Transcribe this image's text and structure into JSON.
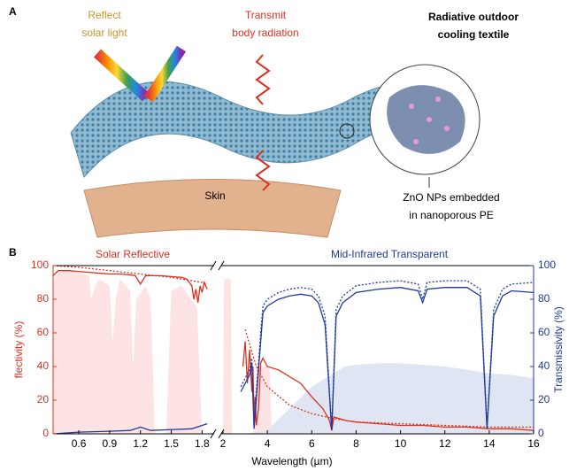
{
  "panel_a": {
    "label": "A",
    "reflect_label": [
      "Reflect",
      "solar light"
    ],
    "transmit_label": [
      "Transmit",
      "body radiation"
    ],
    "textile_label": [
      "Radiative outdoor",
      "cooling textile"
    ],
    "skin_label": "Skin",
    "zno_label": [
      "ZnO NPs embedded",
      "in nanoporous PE"
    ]
  },
  "chart_data": {
    "type": "line",
    "panel_label": "B",
    "annotations": [
      {
        "text": "Solar Reflective",
        "color": "#e0301e"
      },
      {
        "text": "Mid-Infrared Transparent",
        "color": "#1f3a9a"
      }
    ],
    "ylabel": "flectivity (%)",
    "y2label": "Transmissivity (%)",
    "xlabel": "Wavelength (µm)",
    "x_segments": [
      {
        "xlim": [
          0.35,
          1.9
        ],
        "xticks": [
          0.6,
          0.9,
          1.2,
          1.5,
          1.8
        ]
      },
      {
        "xlim": [
          2,
          16
        ],
        "xticks": [
          2,
          4,
          6,
          8,
          10,
          12,
          14,
          16
        ]
      }
    ],
    "ylim": [
      0,
      100
    ],
    "yticks": [
      0,
      20,
      40,
      60,
      80,
      100
    ],
    "ycolor": "#e0301e",
    "y2lim": [
      0,
      100
    ],
    "y2ticks": [
      0,
      20,
      40,
      60,
      80,
      100
    ],
    "y2color": "#1f3a9a",
    "series": [
      {
        "style": "area",
        "segment": 0,
        "color": "#fde3e3",
        "x": [
          0.35,
          0.4,
          0.5,
          0.6,
          0.7,
          0.72,
          0.76,
          0.8,
          0.9,
          0.93,
          0.96,
          1.0,
          1.1,
          1.13,
          1.16,
          1.25,
          1.3,
          1.34,
          1.45,
          1.5,
          1.6,
          1.75,
          1.8,
          1.9
        ],
        "values": [
          90,
          96,
          97,
          96,
          94,
          80,
          88,
          92,
          88,
          55,
          80,
          92,
          85,
          40,
          80,
          88,
          80,
          0,
          0,
          85,
          88,
          75,
          0,
          0
        ]
      },
      {
        "style": "area",
        "segment": 1,
        "color": "#fde3e3",
        "x": [
          2.0,
          2.05,
          2.35,
          2.4,
          3.4,
          3.5,
          4.1,
          4.2
        ],
        "values": [
          0,
          92,
          92,
          0,
          0,
          40,
          40,
          0
        ]
      },
      {
        "style": "area",
        "segment": 1,
        "axis": "y2",
        "color": "#dfe5f3",
        "x": [
          2,
          3,
          4,
          5,
          6,
          7,
          7.5,
          8,
          9,
          10,
          11,
          12,
          13,
          14,
          15,
          16
        ],
        "values": [
          0,
          0,
          2,
          15,
          28,
          36,
          40,
          41,
          42,
          42,
          41,
          40,
          38,
          36,
          35,
          33
        ]
      },
      {
        "style": "solid",
        "segment": 0,
        "color": "#e0301e",
        "x": [
          0.35,
          0.4,
          0.5,
          0.6,
          0.7,
          0.8,
          0.9,
          1.0,
          1.1,
          1.15,
          1.2,
          1.25,
          1.3,
          1.4,
          1.5,
          1.6,
          1.65,
          1.7,
          1.72,
          1.74,
          1.76,
          1.78,
          1.8,
          1.82,
          1.85
        ],
        "values": [
          94,
          97,
          97,
          96.5,
          96,
          95.5,
          95,
          95,
          94.5,
          94,
          89,
          94,
          94,
          94,
          93.5,
          93,
          92,
          88,
          80,
          86,
          78,
          88,
          84,
          90,
          86
        ]
      },
      {
        "style": "dotted",
        "segment": 0,
        "color": "#e0301e",
        "x": [
          0.35,
          0.6,
          0.9,
          1.2,
          1.5,
          1.8,
          1.85
        ],
        "values": [
          100,
          99,
          97,
          95,
          93,
          90,
          89
        ]
      },
      {
        "style": "solid",
        "segment": 1,
        "color": "#e0301e",
        "x": [
          2.9,
          3.0,
          3.1,
          3.2,
          3.3,
          3.35,
          3.4,
          3.45,
          3.5,
          3.6,
          3.7,
          3.8,
          4.0,
          4.5,
          5,
          5.5,
          6,
          6.5,
          6.8,
          6.9,
          7.0,
          7.5,
          8,
          9,
          10,
          11,
          12,
          13,
          14,
          15,
          16
        ],
        "values": [
          40,
          55,
          30,
          50,
          25,
          40,
          10,
          22,
          5,
          15,
          42,
          45,
          40,
          38,
          34,
          30,
          22,
          15,
          8,
          2,
          10,
          8,
          7,
          6,
          5,
          5,
          4,
          4,
          3,
          3,
          2
        ]
      },
      {
        "style": "dotted",
        "segment": 1,
        "color": "#e0301e",
        "x": [
          3.0,
          3.5,
          4,
          5,
          6,
          7,
          8,
          10,
          12,
          14,
          16
        ],
        "values": [
          62,
          40,
          28,
          17,
          12,
          9,
          7,
          6,
          5,
          4,
          4
        ]
      },
      {
        "style": "solid",
        "segment": 0,
        "axis": "y2",
        "color": "#1f3a9a",
        "x": [
          0.35,
          0.6,
          0.9,
          1.1,
          1.2,
          1.3,
          1.5,
          1.7,
          1.8,
          1.85
        ],
        "values": [
          0,
          1,
          1.5,
          2,
          4,
          2,
          2.5,
          3,
          5,
          6
        ]
      },
      {
        "style": "solid",
        "segment": 1,
        "axis": "y2",
        "color": "#1f3a9a",
        "x": [
          2.8,
          3.0,
          3.2,
          3.3,
          3.4,
          3.5,
          3.6,
          3.7,
          3.8,
          4.0,
          4.5,
          5,
          5.5,
          6,
          6.3,
          6.6,
          6.9,
          7.1,
          7.4,
          8,
          9,
          10,
          10.8,
          11,
          11.2,
          12,
          13,
          13.6,
          13.9,
          14.2,
          14.6,
          15,
          16
        ],
        "values": [
          25,
          30,
          35,
          42,
          3,
          20,
          38,
          55,
          72,
          76,
          80,
          82,
          83,
          82,
          78,
          65,
          2,
          70,
          78,
          84,
          86,
          87,
          85,
          78,
          86,
          87,
          87,
          82,
          3,
          70,
          82,
          85,
          84
        ]
      },
      {
        "style": "dotted",
        "segment": 1,
        "axis": "y2",
        "color": "#1f3a9a",
        "x": [
          2.8,
          3.0,
          3.2,
          3.3,
          3.4,
          3.5,
          3.6,
          3.7,
          3.8,
          4.0,
          4.5,
          5,
          5.5,
          6,
          6.3,
          6.6,
          6.9,
          7.1,
          7.4,
          8,
          9,
          10,
          10.8,
          11,
          11.2,
          12,
          13,
          13.6,
          13.9,
          14.2,
          14.6,
          15,
          16
        ],
        "values": [
          28,
          33,
          38,
          45,
          5,
          25,
          42,
          60,
          76,
          80,
          84,
          86,
          87,
          86,
          82,
          70,
          3,
          74,
          82,
          88,
          90,
          91,
          89,
          80,
          90,
          91,
          91,
          86,
          4,
          74,
          86,
          89,
          90
        ]
      }
    ]
  }
}
